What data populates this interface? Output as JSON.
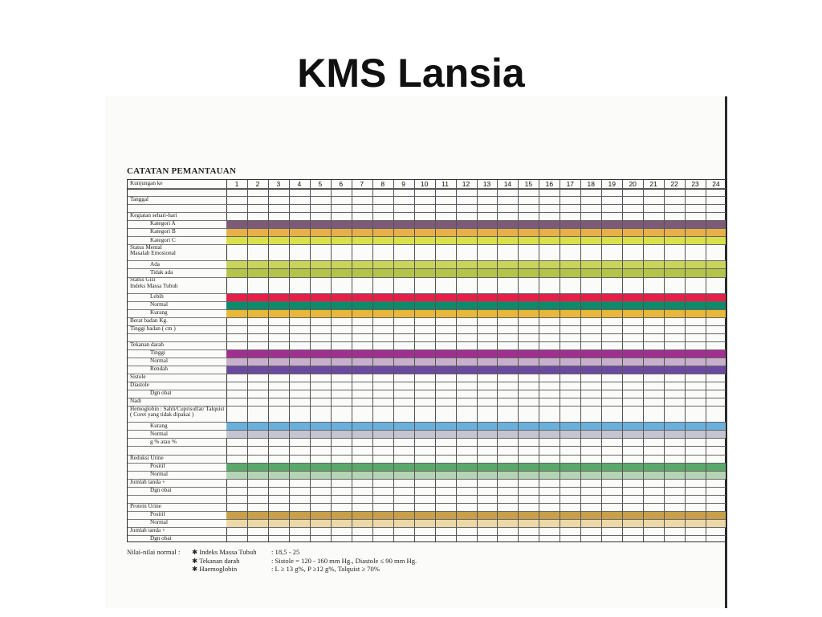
{
  "slide": {
    "title": "KMS Lansia"
  },
  "sheet": {
    "title": "CATATAN PEMANTAUAN",
    "visits": [
      "1",
      "2",
      "3",
      "4",
      "5",
      "6",
      "7",
      "8",
      "9",
      "10",
      "11",
      "12",
      "13",
      "14",
      "15",
      "16",
      "17",
      "18",
      "19",
      "20",
      "21",
      "22",
      "23",
      "24"
    ],
    "rows": [
      {
        "label": "Kunjungan ke",
        "indent": 0
      },
      {
        "label": "",
        "indent": 0
      },
      {
        "label": "Tanggal",
        "indent": 0
      },
      {
        "label": "",
        "indent": 0,
        "nogrid": true
      },
      {
        "label": "Kegiatan sehari-hari",
        "indent": 0,
        "nogrid": true
      },
      {
        "label": "Kategori A",
        "indent": 1,
        "color": "#7d5a78"
      },
      {
        "label": "Kategori B",
        "indent": 1,
        "color": "#e8b04a"
      },
      {
        "label": "Kategori C",
        "indent": 1,
        "color": "#d8e04a"
      },
      {
        "label": "Status Mental\nMasalah Emosional",
        "indent": 0,
        "tall": true,
        "nogrid": true
      },
      {
        "label": "Ada",
        "indent": 1,
        "color": "#c8d45a"
      },
      {
        "label": "Tidak ada",
        "indent": 1,
        "color": "#b4c448"
      },
      {
        "label": "Status Gizi\nIndeks Massa Tubuh",
        "indent": 0,
        "tall": true,
        "nogrid": true
      },
      {
        "label": "Lebih",
        "indent": 1,
        "color": "#e2204a"
      },
      {
        "label": "Normal",
        "indent": 1,
        "color": "#0d8a6a"
      },
      {
        "label": "Kurang",
        "indent": 1,
        "color": "#e8b83a"
      },
      {
        "label": "Berat badan Kg.",
        "indent": 0
      },
      {
        "label": "Tinggi badan ( cm )",
        "indent": 0
      },
      {
        "label": "",
        "indent": 0,
        "nogrid": true
      },
      {
        "label": "Tekanan darah",
        "indent": 0,
        "nogrid": true
      },
      {
        "label": "Tinggi",
        "indent": 1,
        "color": "#a03090"
      },
      {
        "label": "Normal",
        "indent": 1,
        "color": "#c8b0cc"
      },
      {
        "label": "Rendah",
        "indent": 1,
        "color": "#6a4aa0"
      },
      {
        "label": "Sistole",
        "indent": 0
      },
      {
        "label": "Diastole",
        "indent": 0
      },
      {
        "label": "Dgn obat",
        "indent": 1
      },
      {
        "label": "Nadi",
        "indent": 0
      },
      {
        "label": "Hemoglobin : Sahli/Cuprisulfat/ Talquist\n( Coret yang tidak dipakai )",
        "indent": 0,
        "tall": true,
        "nogrid": true
      },
      {
        "label": "Kurang",
        "indent": 1,
        "color": "#6ab0dc"
      },
      {
        "label": "Normal",
        "indent": 1,
        "color": "#c4c4d2"
      },
      {
        "label": "g % atau %",
        "indent": 1
      },
      {
        "label": "",
        "indent": 0,
        "nogrid": true
      },
      {
        "label": "Reduksi Urine",
        "indent": 0,
        "nogrid": true
      },
      {
        "label": "Positif",
        "indent": 1,
        "color": "#5aa86a"
      },
      {
        "label": "Normal",
        "indent": 1,
        "color": "#b4d4b4"
      },
      {
        "label": "Jumlah tanda +",
        "indent": 0
      },
      {
        "label": "Dgn obat",
        "indent": 1
      },
      {
        "label": "",
        "indent": 0,
        "nogrid": true
      },
      {
        "label": "Protein Urine",
        "indent": 0,
        "nogrid": true
      },
      {
        "label": "Positif",
        "indent": 1,
        "color": "#c8a04a"
      },
      {
        "label": "Normal",
        "indent": 1,
        "color": "#ecd8a8"
      },
      {
        "label": "Jumlah tanda +",
        "indent": 0
      },
      {
        "label": "Dgn obat",
        "indent": 1
      }
    ],
    "normals": {
      "intro": "Nilai-nilai normal :",
      "items": [
        {
          "name": "✱ Indeks Massa Tubuh",
          "value": ": 18,5 - 25"
        },
        {
          "name": "✱ Tekanan darah",
          "value": ": Sistole = 120 - 160 mm Hg., Diastole ≤ 90 mm Hg."
        },
        {
          "name": "✱ Haemoglobin",
          "value": ": L ≥ 13 g%, P ≥12 g%, Talquist ≥ 70%"
        }
      ]
    }
  }
}
